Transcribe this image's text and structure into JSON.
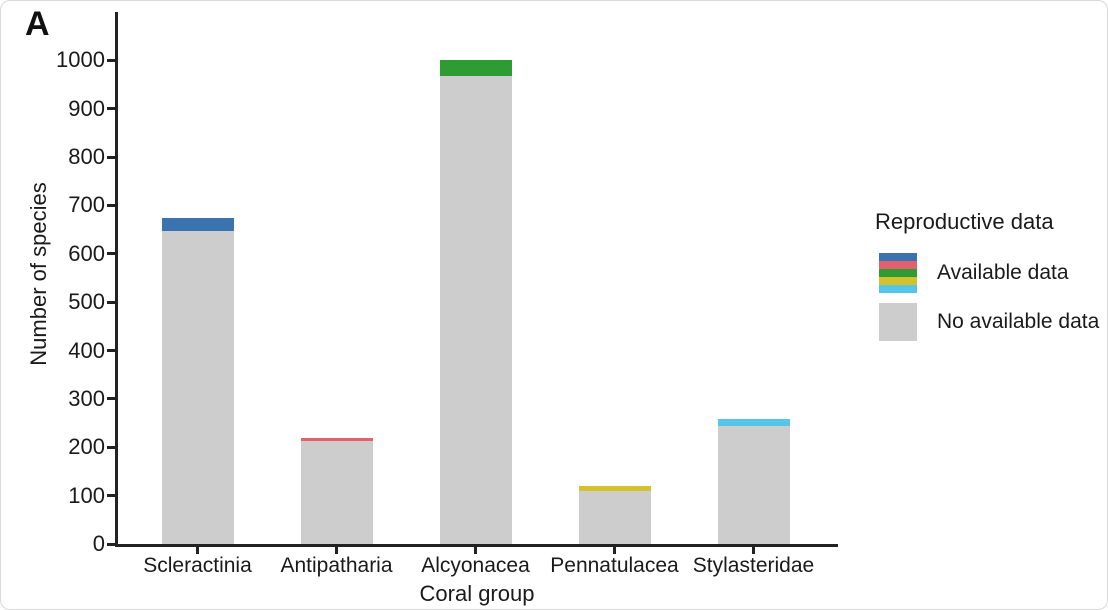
{
  "panel_label": "A",
  "axes": {
    "ylabel": "Number of species",
    "xlabel": "Coral group"
  },
  "legend": {
    "title": "Reproductive data",
    "available_label": "Available data",
    "no_data_label": "No available data",
    "available_colors": [
      "#3B73AF",
      "#E4606D",
      "#2E9B33",
      "#D3C22E",
      "#55C6EA"
    ],
    "no_data_color": "#CDCDCD"
  },
  "chart_data": {
    "type": "bar",
    "stacked": true,
    "title": "",
    "xlabel": "Coral group",
    "ylabel": "Number of species",
    "categories": [
      "Scleractinia",
      "Antipatharia",
      "Alcyonacea",
      "Pennatulacea",
      "Stylasteridae"
    ],
    "series": [
      {
        "name": "No available data",
        "values": [
          648,
          213,
          968,
          110,
          243
        ],
        "color": "#CDCDCD"
      },
      {
        "name": "Available data",
        "values": [
          27,
          7,
          32,
          10,
          15
        ],
        "colors": [
          "#3B73AF",
          "#E4606D",
          "#2E9B33",
          "#D3C22E",
          "#55C6EA"
        ]
      }
    ],
    "totals": [
      675,
      220,
      1000,
      120,
      258
    ],
    "ylim": [
      0,
      1100
    ],
    "yticks": [
      0,
      100,
      200,
      300,
      400,
      500,
      600,
      700,
      800,
      900,
      1000
    ],
    "grid": false,
    "legend_position": "right"
  }
}
